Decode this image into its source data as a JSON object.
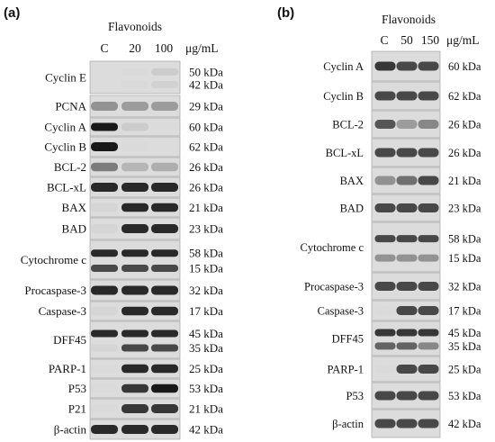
{
  "panel_a": {
    "letter": "(a)",
    "treatment": "Flavonoids",
    "doses": [
      "C",
      "20",
      "100"
    ],
    "unit": "μg/mL",
    "blots": [
      {
        "label": "Cyclin E",
        "mw": [
          "50 kDa",
          "42 kDa"
        ],
        "bands": [
          [
            0,
            0.06,
            0.2
          ],
          [
            0,
            0.06,
            0.15
          ]
        ]
      },
      {
        "label": "PCNA",
        "mw": [
          "29 kDa"
        ],
        "bands": [
          [
            0.55,
            0.5,
            0.5
          ]
        ]
      },
      {
        "label": "Cyclin A",
        "mw": [
          "60 kDa"
        ],
        "bands": [
          [
            1.0,
            0.2,
            0.04
          ]
        ]
      },
      {
        "label": "Cyclin B",
        "mw": [
          "62 kDa"
        ],
        "bands": [
          [
            1.0,
            0.05,
            0.02
          ]
        ]
      },
      {
        "label": "BCL-2",
        "mw": [
          "26 kDa"
        ],
        "bands": [
          [
            0.65,
            0.35,
            0.4
          ]
        ]
      },
      {
        "label": "BCL-xL",
        "mw": [
          "26 kDa"
        ],
        "bands": [
          [
            0.95,
            0.95,
            0.95
          ]
        ]
      },
      {
        "label": "BAX",
        "mw": [
          "21 kDa"
        ],
        "bands": [
          [
            0.1,
            0.95,
            0.95
          ]
        ]
      },
      {
        "label": "BAD",
        "mw": [
          "23 kDa"
        ],
        "bands": [
          [
            0.1,
            0.95,
            0.95
          ]
        ]
      },
      {
        "label": "Cytochrome c",
        "mw": [
          "58 kDa",
          "15 kDa"
        ],
        "bands": [
          [
            0.95,
            0.95,
            0.95
          ],
          [
            0.85,
            0.85,
            0.85
          ]
        ]
      },
      {
        "label": "Procaspase-3",
        "mw": [
          "32 kDa"
        ],
        "bands": [
          [
            0.95,
            0.95,
            0.95
          ]
        ]
      },
      {
        "label": "Caspase-3",
        "mw": [
          "17 kDa"
        ],
        "bands": [
          [
            0.1,
            0.95,
            0.95
          ]
        ]
      },
      {
        "label": "DFF45",
        "mw": [
          "45 kDa",
          "35 kDa"
        ],
        "bands": [
          [
            0.95,
            0.95,
            0.95
          ],
          [
            0.1,
            0.85,
            0.85
          ]
        ]
      },
      {
        "label": "PARP-1",
        "mw": [
          "25 kDa"
        ],
        "bands": [
          [
            0.05,
            0.95,
            0.95
          ]
        ]
      },
      {
        "label": "P53",
        "mw": [
          "53 kDa"
        ],
        "bands": [
          [
            0.05,
            0.9,
            1.0
          ]
        ]
      },
      {
        "label": "P21",
        "mw": [
          "21 kDa"
        ],
        "bands": [
          [
            0.05,
            0.9,
            0.9
          ]
        ]
      },
      {
        "label": "β-actin",
        "mw": [
          "42 kDa"
        ],
        "bands": [
          [
            0.95,
            0.95,
            0.95
          ]
        ]
      }
    ]
  },
  "panel_b": {
    "letter": "(b)",
    "treatment": "Flavonoids",
    "doses": [
      "C",
      "50",
      "150"
    ],
    "unit": "μg/mL",
    "blots": [
      {
        "label": "Cyclin A",
        "mw": [
          "60 kDa"
        ],
        "bands": [
          [
            0.9,
            0.85,
            0.85
          ]
        ]
      },
      {
        "label": "Cyclin B",
        "mw": [
          "62 kDa"
        ],
        "bands": [
          [
            0.85,
            0.85,
            0.85
          ]
        ]
      },
      {
        "label": "BCL-2",
        "mw": [
          "26 kDa"
        ],
        "bands": [
          [
            0.8,
            0.5,
            0.6
          ]
        ]
      },
      {
        "label": "BCL-xL",
        "mw": [
          "26 kDa"
        ],
        "bands": [
          [
            0.85,
            0.85,
            0.85
          ]
        ]
      },
      {
        "label": "BAX",
        "mw": [
          "21 kDa"
        ],
        "bands": [
          [
            0.55,
            0.7,
            0.85
          ]
        ]
      },
      {
        "label": "BAD",
        "mw": [
          "23 kDa"
        ],
        "bands": [
          [
            0.85,
            0.85,
            0.85
          ]
        ]
      },
      {
        "label": "Cytochrome c",
        "mw": [
          "58 kDa",
          "15 kDa"
        ],
        "bands": [
          [
            0.85,
            0.85,
            0.85
          ],
          [
            0.55,
            0.55,
            0.55
          ]
        ]
      },
      {
        "label": "Procaspase-3",
        "mw": [
          "32 kDa"
        ],
        "bands": [
          [
            0.85,
            0.85,
            0.85
          ]
        ]
      },
      {
        "label": "Caspase-3",
        "mw": [
          "17 kDa"
        ],
        "bands": [
          [
            0.05,
            0.85,
            0.85
          ]
        ]
      },
      {
        "label": "DFF45",
        "mw": [
          "45 kDa",
          "35 kDa"
        ],
        "bands": [
          [
            0.9,
            0.9,
            0.9
          ],
          [
            0.75,
            0.75,
            0.6
          ]
        ]
      },
      {
        "label": "PARP-1",
        "mw": [
          "25 kDa"
        ],
        "bands": [
          [
            0.05,
            0.85,
            0.85
          ]
        ]
      },
      {
        "label": "P53",
        "mw": [
          "53 kDa"
        ],
        "bands": [
          [
            0.85,
            0.85,
            0.85
          ]
        ]
      },
      {
        "label": "β-actin",
        "mw": [
          "42 kDa"
        ],
        "bands": [
          [
            0.85,
            0.85,
            0.85
          ]
        ]
      }
    ]
  }
}
